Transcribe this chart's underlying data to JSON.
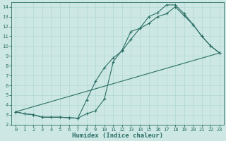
{
  "xlabel": "Humidex (Indice chaleur)",
  "bg_color": "#cde8e4",
  "line_color": "#2a6e65",
  "xlim": [
    -0.5,
    23.5
  ],
  "ylim": [
    2,
    14.5
  ],
  "xticks": [
    0,
    1,
    2,
    3,
    4,
    5,
    6,
    7,
    8,
    9,
    10,
    11,
    12,
    13,
    14,
    15,
    16,
    17,
    18,
    19,
    20,
    21,
    22,
    23
  ],
  "yticks": [
    2,
    3,
    4,
    5,
    6,
    7,
    8,
    9,
    10,
    11,
    12,
    13,
    14
  ],
  "line1_x": [
    0,
    1,
    2,
    3,
    4,
    5,
    6,
    7,
    8,
    9,
    10,
    11,
    12,
    13,
    14,
    15,
    16,
    17,
    18,
    19,
    20,
    21,
    22,
    23
  ],
  "line1_y": [
    3.3,
    3.1,
    3.0,
    2.75,
    2.75,
    2.75,
    2.7,
    2.65,
    3.1,
    3.4,
    4.6,
    8.4,
    9.6,
    11.5,
    11.8,
    13.0,
    13.4,
    14.2,
    14.2,
    13.3,
    12.2,
    11.0,
    10.0,
    9.3
  ],
  "line2_x": [
    0,
    1,
    2,
    3,
    4,
    5,
    6,
    7,
    8,
    9,
    10,
    11,
    12,
    13,
    14,
    15,
    16,
    17,
    18,
    19,
    20,
    21,
    22,
    23
  ],
  "line2_y": [
    3.3,
    3.1,
    3.0,
    2.75,
    2.75,
    2.75,
    2.7,
    2.65,
    4.5,
    6.4,
    7.8,
    8.8,
    9.5,
    10.7,
    11.8,
    12.3,
    13.0,
    13.3,
    14.0,
    13.1,
    12.2,
    11.0,
    10.0,
    9.3
  ],
  "line3_x": [
    0,
    23
  ],
  "line3_y": [
    3.3,
    9.3
  ],
  "grid_color": "#b0d8d2",
  "spine_color": "#2a6e65"
}
